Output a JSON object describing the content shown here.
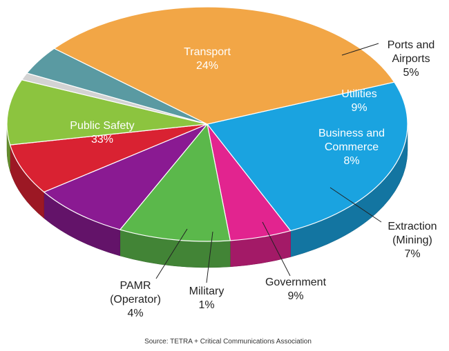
{
  "chart_data": {
    "type": "pie",
    "title": "",
    "source": "Source: TETRA + Critical Communications Association",
    "slices": [
      {
        "label": "Transport",
        "value": 24,
        "value_label": "24%",
        "color": "#1aa3e0"
      },
      {
        "label": "Ports and Airports",
        "value": 5,
        "value_label": "5%",
        "color": "#e2248f"
      },
      {
        "label": "Utilities",
        "value": 9,
        "value_label": "9%",
        "color": "#5bb84b"
      },
      {
        "label": "Business and Commerce",
        "value": 8,
        "value_label": "8%",
        "color": "#8a1a92"
      },
      {
        "label": "Extraction (Mining)",
        "value": 7,
        "value_label": "7%",
        "color": "#d92232"
      },
      {
        "label": "Government",
        "value": 9,
        "value_label": "9%",
        "color": "#8cc43f"
      },
      {
        "label": "Military",
        "value": 1,
        "value_label": "1%",
        "color": "#d3d3d3"
      },
      {
        "label": "PAMR (Operator)",
        "value": 4,
        "value_label": "4%",
        "color": "#5a9aa2"
      },
      {
        "label": "Public Safety",
        "value": 33,
        "value_label": "33%",
        "color": "#f2a646"
      }
    ]
  }
}
